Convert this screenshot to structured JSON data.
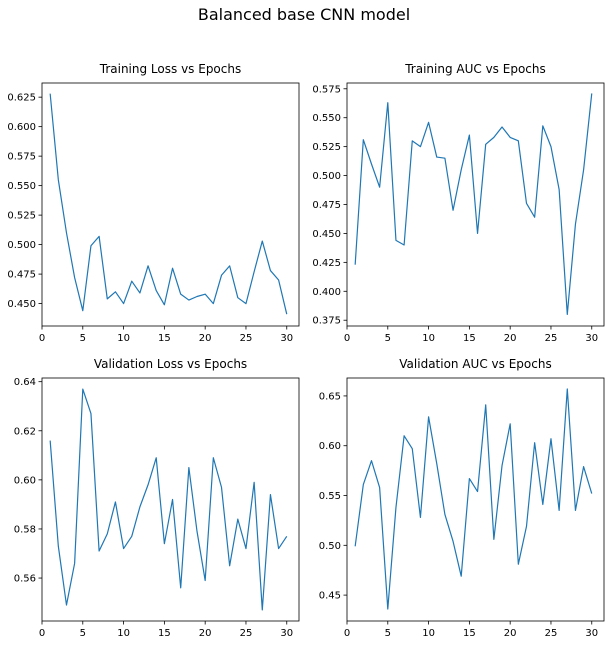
{
  "figure": {
    "suptitle": "Balanced base CNN model"
  },
  "chart_data": [
    {
      "type": "line",
      "title": "Training Loss vs Epochs",
      "xlabel": "",
      "ylabel": "",
      "xlim": [
        0,
        31.5
      ],
      "ylim": [
        0.431,
        0.637
      ],
      "xticks": [
        0,
        5,
        10,
        15,
        20,
        25,
        30
      ],
      "yticks": [
        0.45,
        0.475,
        0.5,
        0.525,
        0.55,
        0.575,
        0.6,
        0.625
      ],
      "ytick_labels": [
        "0.450",
        "0.475",
        "0.500",
        "0.525",
        "0.550",
        "0.575",
        "0.600",
        "0.625"
      ],
      "color": "#1f77b4",
      "x": [
        1,
        2,
        3,
        4,
        5,
        6,
        7,
        8,
        9,
        10,
        11,
        12,
        13,
        14,
        15,
        16,
        17,
        18,
        19,
        20,
        21,
        22,
        23,
        24,
        25,
        26,
        27,
        28,
        29,
        30
      ],
      "y": [
        0.628,
        0.555,
        0.51,
        0.472,
        0.444,
        0.499,
        0.507,
        0.454,
        0.46,
        0.45,
        0.469,
        0.459,
        0.482,
        0.461,
        0.449,
        0.48,
        0.458,
        0.453,
        0.456,
        0.458,
        0.45,
        0.474,
        0.482,
        0.455,
        0.45,
        0.477,
        0.503,
        0.478,
        0.47,
        0.441
      ]
    },
    {
      "type": "line",
      "title": "Training AUC vs Epochs",
      "xlabel": "",
      "ylabel": "",
      "xlim": [
        0,
        31.5
      ],
      "ylim": [
        0.37,
        0.58
      ],
      "xticks": [
        0,
        5,
        10,
        15,
        20,
        25,
        30
      ],
      "yticks": [
        0.375,
        0.4,
        0.425,
        0.45,
        0.475,
        0.5,
        0.525,
        0.55,
        0.575
      ],
      "ytick_labels": [
        "0.375",
        "0.400",
        "0.425",
        "0.450",
        "0.475",
        "0.500",
        "0.525",
        "0.550",
        "0.575"
      ],
      "color": "#1f77b4",
      "x": [
        1,
        2,
        3,
        4,
        5,
        6,
        7,
        8,
        9,
        10,
        11,
        12,
        13,
        14,
        15,
        16,
        17,
        18,
        19,
        20,
        21,
        22,
        23,
        24,
        25,
        26,
        27,
        28,
        29,
        30
      ],
      "y": [
        0.423,
        0.531,
        0.51,
        0.49,
        0.563,
        0.444,
        0.44,
        0.53,
        0.525,
        0.546,
        0.516,
        0.515,
        0.47,
        0.505,
        0.535,
        0.45,
        0.527,
        0.533,
        0.542,
        0.533,
        0.53,
        0.476,
        0.464,
        0.543,
        0.525,
        0.488,
        0.38,
        0.458,
        0.505,
        0.571
      ]
    },
    {
      "type": "line",
      "title": "Validation Loss vs Epochs",
      "xlabel": "",
      "ylabel": "",
      "xlim": [
        0,
        31.5
      ],
      "ylim": [
        0.5425,
        0.6415
      ],
      "xticks": [
        0,
        5,
        10,
        15,
        20,
        25,
        30
      ],
      "yticks": [
        0.56,
        0.58,
        0.6,
        0.62,
        0.64
      ],
      "ytick_labels": [
        "0.56",
        "0.58",
        "0.60",
        "0.62",
        "0.64"
      ],
      "color": "#1f77b4",
      "x": [
        1,
        2,
        3,
        4,
        5,
        6,
        7,
        8,
        9,
        10,
        11,
        12,
        13,
        14,
        15,
        16,
        17,
        18,
        19,
        20,
        21,
        22,
        23,
        24,
        25,
        26,
        27,
        28,
        29,
        30
      ],
      "y": [
        0.616,
        0.573,
        0.549,
        0.566,
        0.637,
        0.627,
        0.571,
        0.578,
        0.591,
        0.572,
        0.577,
        0.589,
        0.598,
        0.609,
        0.574,
        0.592,
        0.556,
        0.605,
        0.579,
        0.559,
        0.609,
        0.597,
        0.565,
        0.584,
        0.572,
        0.599,
        0.547,
        0.594,
        0.572,
        0.577
      ]
    },
    {
      "type": "line",
      "title": "Validation AUC vs Epochs",
      "xlabel": "",
      "ylabel": "",
      "xlim": [
        0,
        31.5
      ],
      "ylim": [
        0.424,
        0.668
      ],
      "xticks": [
        0,
        5,
        10,
        15,
        20,
        25,
        30
      ],
      "yticks": [
        0.45,
        0.5,
        0.55,
        0.6,
        0.65
      ],
      "ytick_labels": [
        "0.45",
        "0.50",
        "0.55",
        "0.60",
        "0.65"
      ],
      "color": "#1f77b4",
      "x": [
        1,
        2,
        3,
        4,
        5,
        6,
        7,
        8,
        9,
        10,
        11,
        12,
        13,
        14,
        15,
        16,
        17,
        18,
        19,
        20,
        21,
        22,
        23,
        24,
        25,
        26,
        27,
        28,
        29,
        30
      ],
      "y": [
        0.499,
        0.561,
        0.585,
        0.558,
        0.436,
        0.538,
        0.61,
        0.597,
        0.528,
        0.629,
        0.582,
        0.531,
        0.504,
        0.469,
        0.567,
        0.554,
        0.641,
        0.506,
        0.58,
        0.622,
        0.481,
        0.519,
        0.603,
        0.541,
        0.607,
        0.535,
        0.657,
        0.535,
        0.579,
        0.552
      ]
    }
  ]
}
